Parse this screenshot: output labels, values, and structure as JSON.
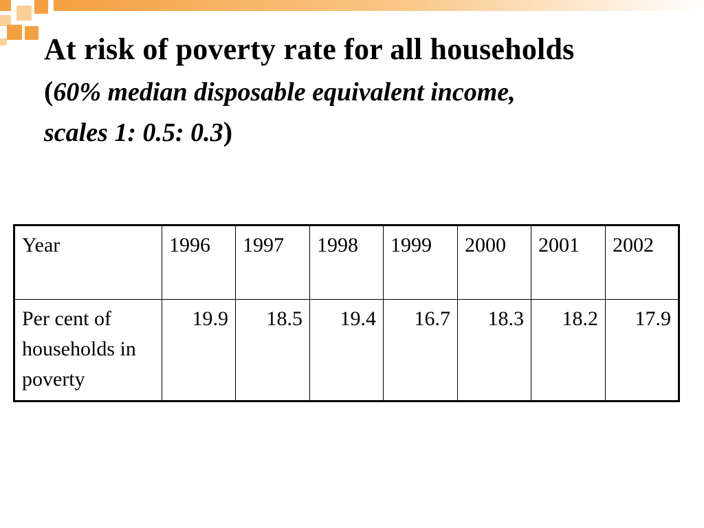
{
  "slide": {
    "title_line1": "At risk of poverty rate for all households",
    "title_paren_open": "(",
    "title_sub_line1": "60% median disposable equivalent income,",
    "title_sub_line2": "scales 1: 0.5: 0.3",
    "title_paren_close": ")"
  },
  "table": {
    "header_label": "Year",
    "years": [
      "1996",
      "1997",
      "1998",
      "1999",
      "2000",
      "2001",
      "2002"
    ],
    "row_label": "Per cent of households in poverty",
    "values": [
      "19.9",
      "18.5",
      "19.4",
      "16.7",
      "18.3",
      "18.2",
      "17.9"
    ]
  },
  "colors": {
    "accent_dark": "#F5A040",
    "accent_light": "#FAD09A",
    "text": "#000000",
    "background": "#FFFFFF"
  }
}
